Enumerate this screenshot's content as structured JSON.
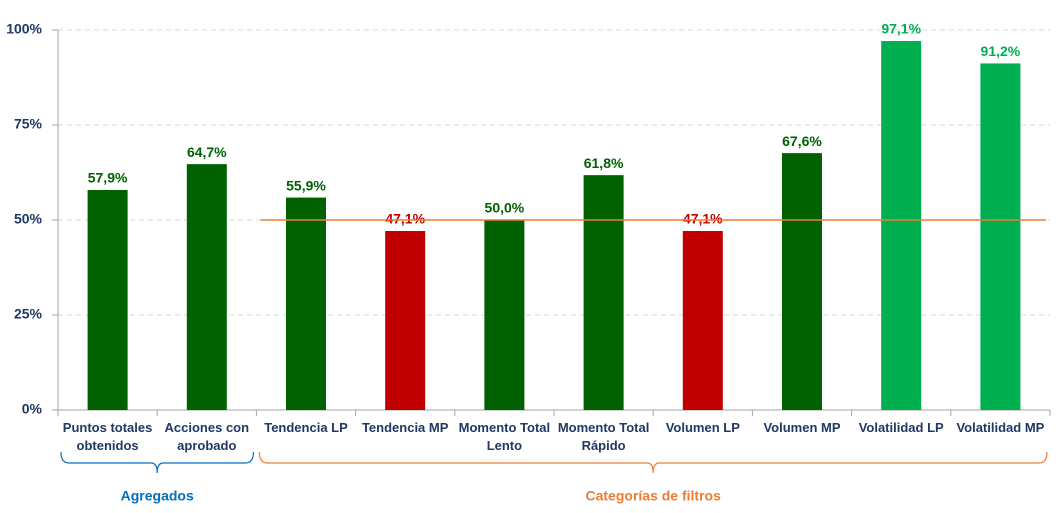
{
  "chart_data": {
    "type": "bar",
    "categories": [
      "Puntos totales\nobtenidos",
      "Acciones con\naprobado",
      "Tendencia LP",
      "Tendencia MP",
      "Momento Total\nLento",
      "Momento Total\nRápido",
      "Volumen LP",
      "Volumen MP",
      "Volatilidad LP",
      "Volatilidad MP"
    ],
    "values": [
      57.9,
      64.7,
      55.9,
      47.1,
      50.0,
      61.8,
      47.1,
      67.6,
      97.1,
      91.2
    ],
    "value_labels": [
      "57,9%",
      "64,7%",
      "55,9%",
      "47,1%",
      "50,0%",
      "61,8%",
      "47,1%",
      "67,6%",
      "97,1%",
      "91,2%"
    ],
    "colors": [
      "#006100",
      "#006100",
      "#006100",
      "#c00000",
      "#006100",
      "#006100",
      "#c00000",
      "#006100",
      "#00b050",
      "#00b050"
    ],
    "ylim": [
      0,
      100
    ],
    "yticks": [
      {
        "value": 0,
        "label": "0%"
      },
      {
        "value": 25,
        "label": "25%"
      },
      {
        "value": 50,
        "label": "50%"
      },
      {
        "value": 75,
        "label": "75%"
      },
      {
        "value": 100,
        "label": "100%"
      }
    ],
    "grid": true,
    "reference_line": {
      "value": 50,
      "color": "#ed7d31"
    },
    "groups": [
      {
        "label": "Agregados",
        "span": 2,
        "color": "#0070c0"
      },
      {
        "label": "Categorías de filtros",
        "span": 8,
        "color": "#ed7d31"
      }
    ]
  }
}
